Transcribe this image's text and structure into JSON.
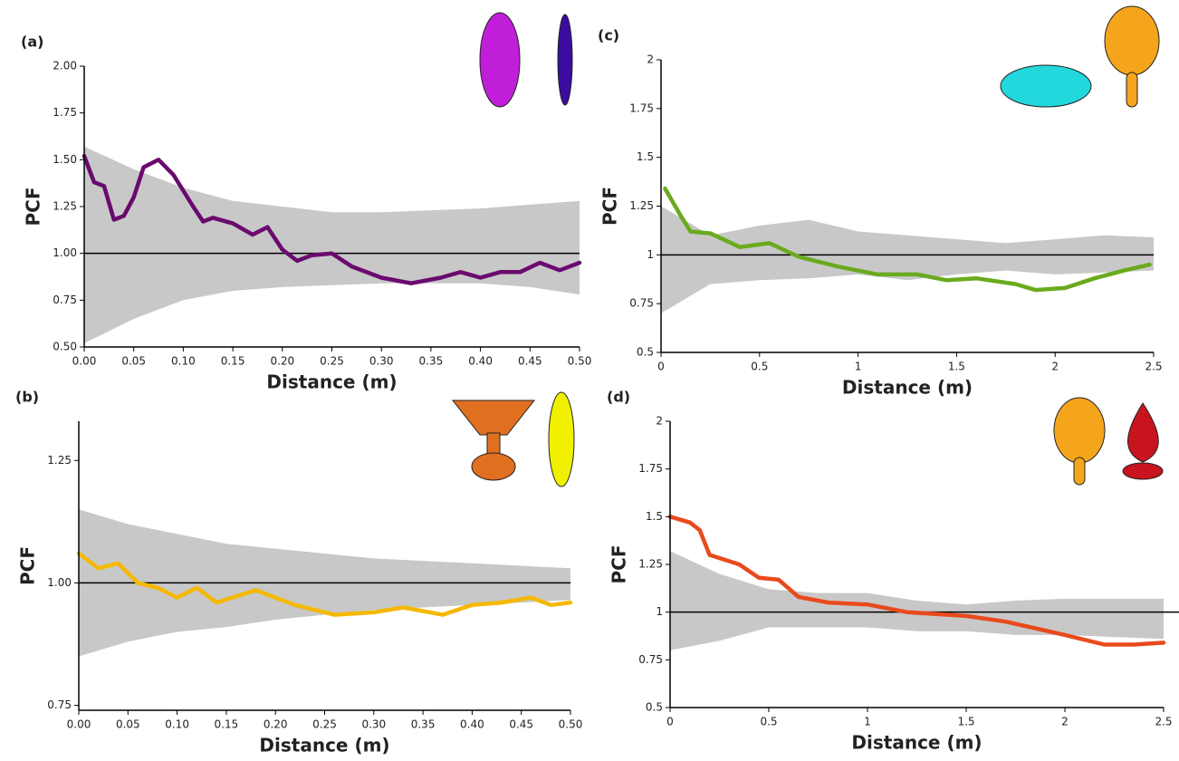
{
  "chart_data": [
    {
      "type": "line",
      "panel_label": "(a)",
      "ylabel": "PCF",
      "xlabel": "Distance (m)",
      "xlim": [
        0,
        0.5
      ],
      "ylim": [
        0.5,
        2.0
      ],
      "hline": 1,
      "xticks": [
        {
          "value": 0,
          "label": "0.00"
        },
        {
          "value": 0.05,
          "label": "0.05"
        },
        {
          "value": 0.1,
          "label": "0.10"
        },
        {
          "value": 0.15,
          "label": "0.15"
        },
        {
          "value": 0.2,
          "label": "0.20"
        },
        {
          "value": 0.25,
          "label": "0.25"
        },
        {
          "value": 0.3,
          "label": "0.30"
        },
        {
          "value": 0.35,
          "label": "0.35"
        },
        {
          "value": 0.4,
          "label": "0.40"
        },
        {
          "value": 0.45,
          "label": "0.45"
        },
        {
          "value": 0.5,
          "label": "0.50"
        }
      ],
      "yticks": [
        {
          "value": 0.5,
          "label": "0.50"
        },
        {
          "value": 0.75,
          "label": "0.75"
        },
        {
          "value": 1,
          "label": "1.00"
        },
        {
          "value": 1.25,
          "label": "1.25"
        },
        {
          "value": 1.5,
          "label": "1.50"
        },
        {
          "value": 1.75,
          "label": "1.75"
        },
        {
          "value": 2,
          "label": "2.00"
        }
      ],
      "envelope": {
        "color": "#c8c8c8",
        "x": [
          0,
          0.05,
          0.1,
          0.15,
          0.2,
          0.25,
          0.3,
          0.35,
          0.4,
          0.45,
          0.5
        ],
        "upper": [
          1.57,
          1.45,
          1.35,
          1.28,
          1.25,
          1.22,
          1.22,
          1.23,
          1.24,
          1.26,
          1.28
        ],
        "lower": [
          0.52,
          0.65,
          0.75,
          0.8,
          0.82,
          0.83,
          0.84,
          0.84,
          0.84,
          0.82,
          0.78
        ]
      },
      "x": [
        0,
        0.01,
        0.02,
        0.03,
        0.04,
        0.05,
        0.06,
        0.075,
        0.09,
        0.11,
        0.12,
        0.13,
        0.15,
        0.17,
        0.185,
        0.2,
        0.215,
        0.23,
        0.25,
        0.27,
        0.3,
        0.33,
        0.36,
        0.38,
        0.4,
        0.42,
        0.44,
        0.46,
        0.48,
        0.5
      ],
      "series": [
        {
          "color": "#6a0a6e",
          "values": [
            1.52,
            1.38,
            1.36,
            1.18,
            1.2,
            1.3,
            1.46,
            1.5,
            1.42,
            1.25,
            1.17,
            1.19,
            1.16,
            1.1,
            1.14,
            1.02,
            0.96,
            0.99,
            1.0,
            0.93,
            0.87,
            0.84,
            0.87,
            0.9,
            0.87,
            0.9,
            0.9,
            0.95,
            0.91,
            0.95
          ]
        }
      ]
    },
    {
      "type": "line",
      "panel_label": "(b)",
      "ylabel": "PCF",
      "xlabel": "Distance (m)",
      "xlim": [
        0,
        0.5
      ],
      "ylim": [
        0.74,
        1.33
      ],
      "hline": 1,
      "xticks": [
        {
          "value": 0,
          "label": "0.00"
        },
        {
          "value": 0.05,
          "label": "0.05"
        },
        {
          "value": 0.1,
          "label": "0.10"
        },
        {
          "value": 0.15,
          "label": "0.15"
        },
        {
          "value": 0.2,
          "label": "0.20"
        },
        {
          "value": 0.25,
          "label": "0.25"
        },
        {
          "value": 0.3,
          "label": "0.30"
        },
        {
          "value": 0.35,
          "label": "0.35"
        },
        {
          "value": 0.4,
          "label": "0.40"
        },
        {
          "value": 0.45,
          "label": "0.45"
        },
        {
          "value": 0.5,
          "label": "0.50"
        }
      ],
      "yticks": [
        {
          "value": 0.75,
          "label": "0.75"
        },
        {
          "value": 1,
          "label": "1.00"
        },
        {
          "value": 1.25,
          "label": "1.25"
        }
      ],
      "envelope": {
        "color": "#c8c8c8",
        "x": [
          0,
          0.05,
          0.1,
          0.15,
          0.2,
          0.25,
          0.3,
          0.35,
          0.4,
          0.45,
          0.5
        ],
        "upper": [
          1.15,
          1.12,
          1.1,
          1.08,
          1.07,
          1.06,
          1.05,
          1.045,
          1.04,
          1.035,
          1.03
        ],
        "lower": [
          0.85,
          0.88,
          0.9,
          0.91,
          0.925,
          0.935,
          0.945,
          0.95,
          0.955,
          0.96,
          0.965
        ]
      },
      "x": [
        0,
        0.02,
        0.04,
        0.06,
        0.08,
        0.1,
        0.12,
        0.14,
        0.18,
        0.22,
        0.26,
        0.3,
        0.33,
        0.37,
        0.4,
        0.43,
        0.46,
        0.48,
        0.5
      ],
      "series": [
        {
          "color": "#f5b800",
          "values": [
            1.06,
            1.03,
            1.04,
            1.0,
            0.99,
            0.97,
            0.99,
            0.96,
            0.985,
            0.955,
            0.935,
            0.94,
            0.95,
            0.935,
            0.955,
            0.96,
            0.97,
            0.955,
            0.96
          ]
        }
      ]
    },
    {
      "type": "line",
      "panel_label": "(c)",
      "ylabel": "PCF",
      "xlabel": "Distance (m)",
      "xlim": [
        0,
        2.5
      ],
      "ylim": [
        0.5,
        2
      ],
      "hline": 1,
      "xticks": [
        0,
        0.5,
        1,
        1.5,
        2,
        2.5
      ],
      "yticks": [
        0.5,
        0.75,
        1,
        1.25,
        1.5,
        1.75,
        2
      ],
      "envelope": {
        "color": "#c8c8c8",
        "x": [
          0,
          0.25,
          0.5,
          0.75,
          1,
          1.25,
          1.5,
          1.75,
          2,
          2.25,
          2.5
        ],
        "upper": [
          1.25,
          1.1,
          1.15,
          1.18,
          1.12,
          1.1,
          1.08,
          1.06,
          1.08,
          1.1,
          1.09
        ],
        "lower": [
          0.7,
          0.85,
          0.87,
          0.88,
          0.9,
          0.87,
          0.9,
          0.92,
          0.9,
          0.91,
          0.92
        ]
      },
      "x": [
        0.02,
        0.1,
        0.15,
        0.25,
        0.4,
        0.55,
        0.7,
        0.9,
        1.1,
        1.3,
        1.45,
        1.6,
        1.8,
        1.9,
        2.05,
        2.2,
        2.35,
        2.48
      ],
      "series": [
        {
          "color": "#6aaa1e",
          "values": [
            1.34,
            1.2,
            1.12,
            1.11,
            1.04,
            1.06,
            0.99,
            0.94,
            0.9,
            0.9,
            0.87,
            0.88,
            0.85,
            0.82,
            0.83,
            0.88,
            0.92,
            0.95
          ]
        }
      ]
    },
    {
      "type": "line",
      "panel_label": "(d)",
      "ylabel": "PCF",
      "xlabel": "Distance (m)",
      "xlim": [
        0,
        2.5
      ],
      "ylim": [
        0.5,
        2
      ],
      "hline": 1,
      "xticks": [
        0,
        0.5,
        1,
        1.5,
        2,
        2.5
      ],
      "yticks": [
        0.5,
        0.75,
        1,
        1.25,
        1.5,
        1.75,
        2
      ],
      "envelope": {
        "color": "#c8c8c8",
        "x": [
          0,
          0.25,
          0.5,
          0.75,
          1,
          1.25,
          1.5,
          1.75,
          2,
          2.25,
          2.5
        ],
        "upper": [
          1.32,
          1.2,
          1.12,
          1.1,
          1.1,
          1.06,
          1.04,
          1.06,
          1.07,
          1.07,
          1.07
        ],
        "lower": [
          0.8,
          0.85,
          0.92,
          0.92,
          0.92,
          0.9,
          0.9,
          0.88,
          0.88,
          0.87,
          0.86
        ]
      },
      "x": [
        0,
        0.1,
        0.15,
        0.2,
        0.35,
        0.45,
        0.55,
        0.65,
        0.8,
        1.0,
        1.2,
        1.5,
        1.7,
        2.0,
        2.2,
        2.35,
        2.5
      ],
      "series": [
        {
          "color": "#e84a1c",
          "values": [
            1.5,
            1.47,
            1.43,
            1.3,
            1.25,
            1.18,
            1.17,
            1.08,
            1.05,
            1.04,
            1.0,
            0.98,
            0.95,
            0.88,
            0.83,
            0.83,
            0.84
          ]
        }
      ]
    }
  ]
}
